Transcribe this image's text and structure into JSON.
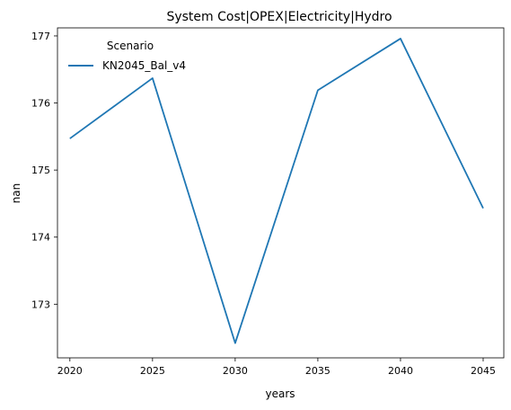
{
  "chart_data": {
    "type": "line",
    "title": "System Cost|OPEX|Electricity|Hydro",
    "xlabel": "years",
    "ylabel": "nan",
    "x": [
      2020,
      2025,
      2030,
      2035,
      2040,
      2045
    ],
    "xticks": [
      "2020",
      "2025",
      "2030",
      "2035",
      "2040",
      "2045"
    ],
    "yticks": [
      "173",
      "174",
      "175",
      "176",
      "177"
    ],
    "xlim": [
      2019.25,
      2046.25
    ],
    "ylim": [
      172.2,
      177.12
    ],
    "grid": false,
    "legend": {
      "title": "Scenario",
      "placement": "top-left"
    },
    "series": [
      {
        "name": "KN2045_Bal_v4",
        "color": "#1f77b4",
        "values": [
          175.47,
          176.37,
          172.42,
          176.19,
          176.96,
          174.43
        ]
      }
    ]
  }
}
